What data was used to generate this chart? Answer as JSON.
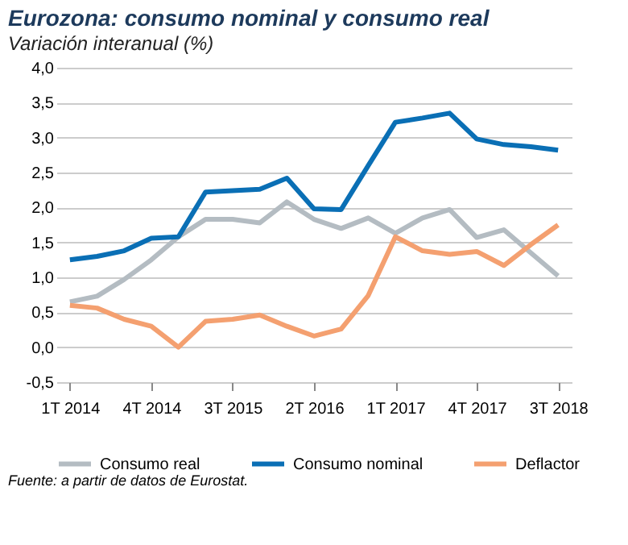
{
  "chart_data": {
    "type": "line",
    "title": "Eurozona: consumo nominal y consumo real",
    "subtitle": "Variación interanual (%)",
    "categories": [
      "1T 2014",
      null,
      null,
      "4T 2014",
      null,
      null,
      "3T 2015",
      null,
      null,
      "2T 2016",
      null,
      null,
      "1T 2017",
      null,
      null,
      "4T 2017",
      null,
      null,
      "3T 2018"
    ],
    "series": [
      {
        "name": "Consumo real",
        "color": "#b4bcc2",
        "values": [
          0.65,
          0.73,
          0.97,
          1.25,
          1.58,
          1.83,
          1.83,
          1.78,
          2.08,
          1.83,
          1.7,
          1.85,
          1.63,
          1.85,
          1.97,
          1.57,
          1.68,
          1.35,
          1.02
        ]
      },
      {
        "name": "Consumo nominal",
        "color": "#0a6fb5",
        "values": [
          1.25,
          1.3,
          1.38,
          1.56,
          1.58,
          2.22,
          2.24,
          2.26,
          2.42,
          1.98,
          1.97,
          2.6,
          3.22,
          3.28,
          3.35,
          2.98,
          2.9,
          2.87,
          2.82
        ]
      },
      {
        "name": "Deflactor",
        "color": "#f4a070",
        "values": [
          0.6,
          0.56,
          0.4,
          0.3,
          0.0,
          0.37,
          0.4,
          0.46,
          0.3,
          0.16,
          0.26,
          0.74,
          1.58,
          1.38,
          1.33,
          1.37,
          1.17,
          1.47,
          1.75
        ]
      }
    ],
    "ylim": [
      -0.5,
      4.0
    ],
    "yticks": [
      {
        "value": -0.5,
        "label": "-0,5"
      },
      {
        "value": 0,
        "label": "0,0"
      },
      {
        "value": 0.5,
        "label": "0,5"
      },
      {
        "value": 1,
        "label": "1,0"
      },
      {
        "value": 1.5,
        "label": "1,5"
      },
      {
        "value": 2,
        "label": "2,0"
      },
      {
        "value": 2.5,
        "label": "2,5"
      },
      {
        "value": 3,
        "label": "3,0"
      },
      {
        "value": 3.5,
        "label": "3,5"
      },
      {
        "value": 4,
        "label": "4,0"
      }
    ],
    "grid": "y",
    "legend": "bottom",
    "marker": "none",
    "line_style": "solid",
    "annotations": [
      "Fuente: a partir de datos de Eurostat."
    ]
  }
}
